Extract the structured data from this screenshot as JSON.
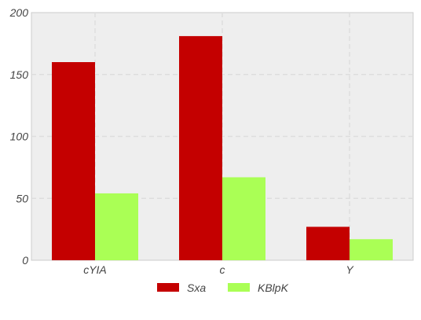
{
  "chart_data": {
    "type": "bar",
    "categories": [
      "cYIA",
      "c",
      "Y"
    ],
    "series": [
      {
        "name": "Sxa",
        "values": [
          160,
          181,
          27
        ],
        "color": "#c40000"
      },
      {
        "name": "KBlpK",
        "values": [
          54,
          67,
          17
        ],
        "color": "#aaff55"
      }
    ],
    "ylim": [
      0,
      200
    ],
    "yticks": [
      0,
      50,
      100,
      150,
      200
    ],
    "grid": true,
    "legend": "bottom-center",
    "plot_background": "#eeeeee",
    "grid_color": "#dddddd"
  }
}
